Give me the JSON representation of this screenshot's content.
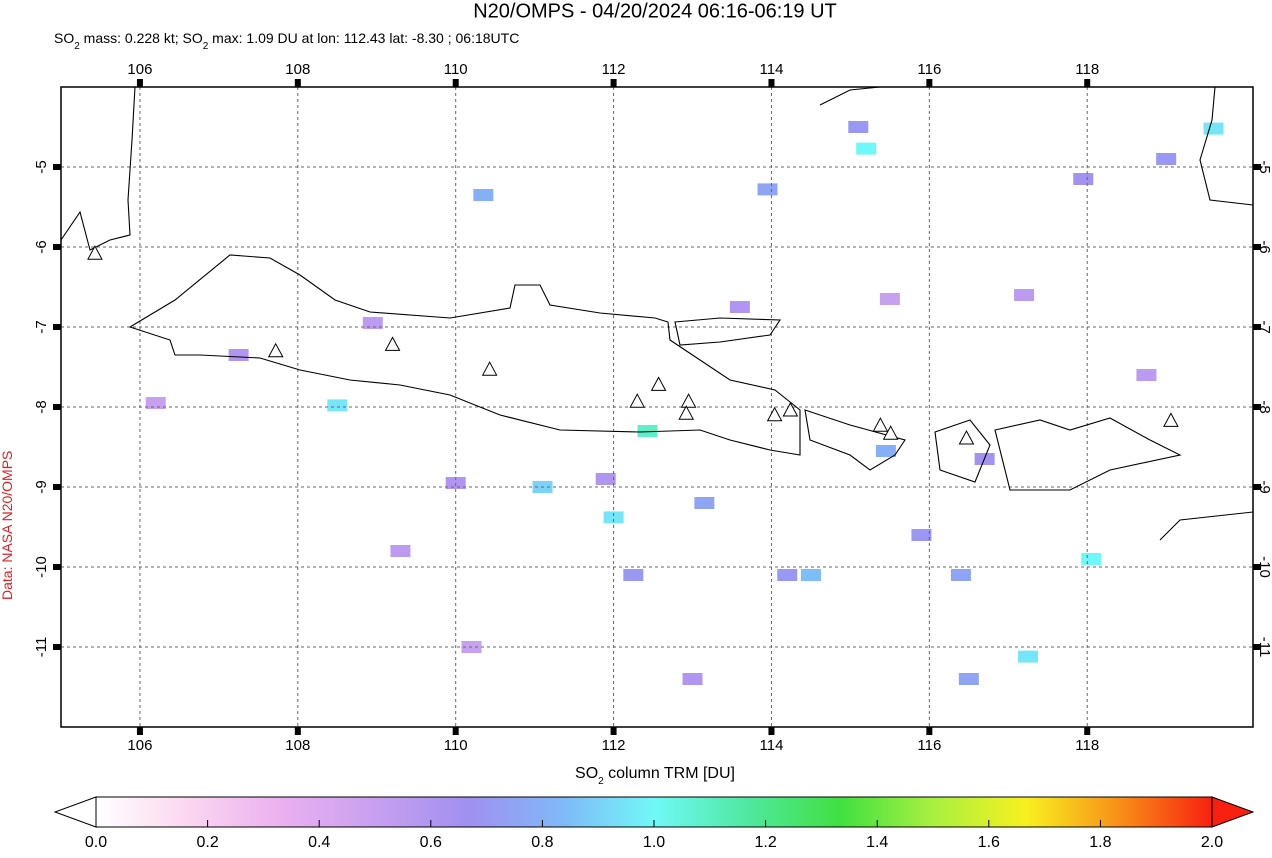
{
  "chart_data": {
    "type": "map",
    "title": "N20/OMPS - 04/20/2024 06:16-06:19 UT",
    "subtitle": [
      "SO",
      "2",
      " mass: 0.228 kt; SO",
      "2",
      " max: 1.09 DU at lon: 112.43 lat: -8.30 ; 06:18UTC"
    ],
    "xlabel": [
      "SO",
      "2",
      " column TRM [DU]"
    ],
    "credit": "Data: NASA N20/OMPS",
    "xlim": [
      105,
      120.1
    ],
    "ylim": [
      -12,
      -4
    ],
    "xticks": [
      106,
      108,
      110,
      112,
      114,
      116,
      118
    ],
    "yticks": [
      -5,
      -6,
      -7,
      -8,
      -9,
      -10,
      -11
    ],
    "grid": true,
    "colorbar": {
      "range": [
        0,
        2
      ],
      "ticks": [
        {
          "value": 0,
          "label": "0.0"
        },
        {
          "value": 0.2,
          "label": "0.2"
        },
        {
          "value": 0.4,
          "label": "0.4"
        },
        {
          "value": 0.6,
          "label": "0.6"
        },
        {
          "value": 0.8,
          "label": "0.8"
        },
        {
          "value": 1,
          "label": "1.0"
        },
        {
          "value": 1.2,
          "label": "1.2"
        },
        {
          "value": 1.4,
          "label": "1.4"
        },
        {
          "value": 1.6,
          "label": "1.6"
        },
        {
          "value": 1.8,
          "label": "1.8"
        },
        {
          "value": 2,
          "label": "2.0"
        }
      ],
      "colors": [
        "#ffffff",
        "#fbd6f0",
        "#eab0f0",
        "#c8a0f0",
        "#a090f0",
        "#80b8f8",
        "#70f8f8",
        "#50e8a0",
        "#40e040",
        "#a8f040",
        "#f8f020",
        "#f89018",
        "#f82010"
      ]
    },
    "volcanoes": [
      [
        105.43,
        -6.09
      ],
      [
        107.72,
        -7.31
      ],
      [
        109.2,
        -7.23
      ],
      [
        110.43,
        -7.54
      ],
      [
        112.3,
        -7.94
      ],
      [
        112.57,
        -7.73
      ],
      [
        112.95,
        -7.94
      ],
      [
        112.92,
        -8.09
      ],
      [
        114.04,
        -8.11
      ],
      [
        114.24,
        -8.05
      ],
      [
        115.38,
        -8.24
      ],
      [
        115.51,
        -8.34
      ],
      [
        116.47,
        -8.4
      ],
      [
        119.06,
        -8.18
      ]
    ],
    "cells": [
      [
        115.2,
        -4.77,
        1.0
      ],
      [
        119.6,
        -4.52,
        0.95
      ],
      [
        108.5,
        -7.98,
        0.95
      ],
      [
        112.43,
        -8.3,
        1.09
      ],
      [
        112.0,
        -9.38,
        0.95
      ],
      [
        118.05,
        -9.9,
        1.0
      ],
      [
        117.25,
        -11.12,
        0.95
      ],
      [
        111.1,
        -9.0,
        0.9
      ],
      [
        110.35,
        -5.35,
        0.8
      ],
      [
        113.95,
        -5.28,
        0.75
      ],
      [
        115.1,
        -4.5,
        0.7
      ],
      [
        115.45,
        -8.55,
        0.8
      ],
      [
        114.5,
        -10.1,
        0.85
      ],
      [
        114.2,
        -10.1,
        0.7
      ],
      [
        116.4,
        -10.1,
        0.75
      ],
      [
        119.0,
        -4.9,
        0.7
      ],
      [
        116.7,
        -8.65,
        0.65
      ],
      [
        112.25,
        -10.1,
        0.7
      ],
      [
        113.15,
        -9.2,
        0.75
      ],
      [
        111.9,
        -8.9,
        0.6
      ],
      [
        107.25,
        -7.35,
        0.6
      ],
      [
        116.5,
        -11.4,
        0.75
      ],
      [
        117.95,
        -5.15,
        0.65
      ],
      [
        110.0,
        -8.95,
        0.6
      ],
      [
        113.6,
        -6.75,
        0.6
      ],
      [
        108.95,
        -6.95,
        0.55
      ],
      [
        115.5,
        -6.65,
        0.5
      ],
      [
        106.2,
        -7.95,
        0.5
      ],
      [
        117.2,
        -6.6,
        0.55
      ],
      [
        113.0,
        -11.4,
        0.6
      ],
      [
        118.75,
        -7.6,
        0.55
      ],
      [
        110.2,
        -11.0,
        0.5
      ],
      [
        115.9,
        -9.6,
        0.7
      ],
      [
        109.3,
        -9.8,
        0.55
      ]
    ]
  }
}
